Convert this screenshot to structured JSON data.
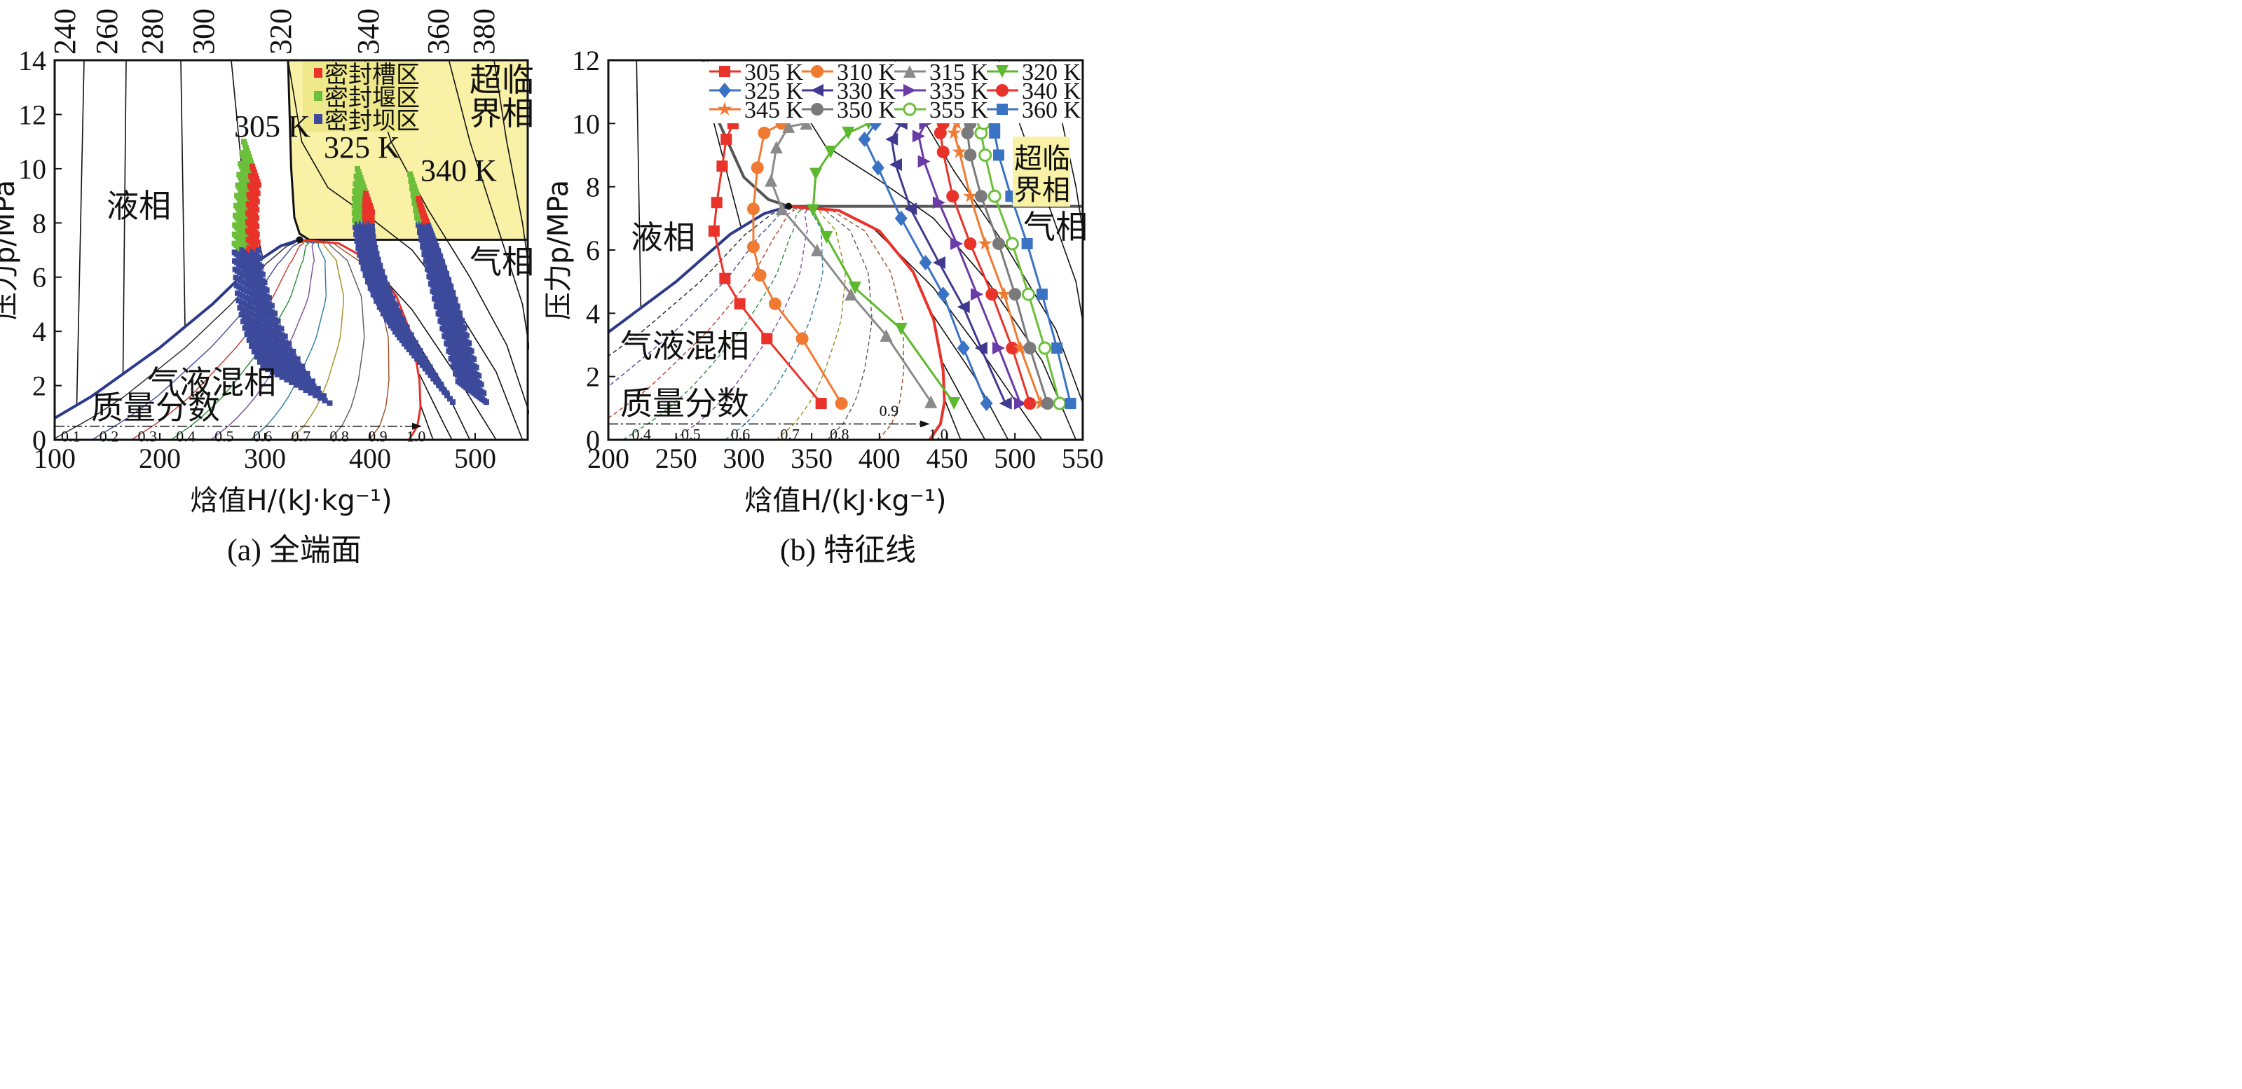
{
  "chart_data": [
    {
      "type": "scatter",
      "panel": "left",
      "caption": "(a) 全端面",
      "xlabel": "焓值H/(kJ·kg⁻¹)",
      "ylabel": "压力p/MPa",
      "xlim": [
        100,
        550
      ],
      "ylim": [
        0,
        14
      ],
      "xticks": [
        100,
        200,
        300,
        400,
        500
      ],
      "yticks": [
        0,
        2,
        4,
        6,
        8,
        10,
        12,
        14
      ],
      "isotherm_labels": [
        "240 K",
        "260 K",
        "280 K",
        "300 K",
        "320 K",
        "340 K",
        "360 K",
        "380 K"
      ],
      "region_labels": {
        "liquid": "液相",
        "vapor": "气相",
        "two_phase": "气液混相",
        "supercritical": "超临界相",
        "supercritical_l1": "超临",
        "supercritical_l2": "界相",
        "quality": "质量分数"
      },
      "quality_ticks": [
        "0.1",
        "0.2",
        "0.3",
        "0.4",
        "0.5",
        "0.6",
        "0.7",
        "0.8",
        "0.9",
        "1.0"
      ],
      "legend": [
        {
          "label": "密封槽区",
          "color": "#e8322a"
        },
        {
          "label": "密封堰区",
          "color": "#6cbf3a"
        },
        {
          "label": "密封坝区",
          "color": "#3d4a9c"
        }
      ],
      "group_labels": [
        "305 K",
        "325 K",
        "340 K"
      ],
      "groups": [
        {
          "name": "305 K",
          "top": [
            287,
            11
          ],
          "mid": [
            255,
            5
          ],
          "bottom_from": [
            300,
            2.6
          ],
          "bottom_to": [
            365,
            1.2
          ],
          "seal_split_p": 7
        },
        {
          "name": "325 K",
          "top": [
            395,
            10
          ],
          "mid": [
            372,
            6
          ],
          "bottom_from": [
            445,
            3
          ],
          "bottom_to": [
            482,
            1.2
          ],
          "seal_split_p": 8
        },
        {
          "name": "340 K",
          "top": [
            445,
            9.8
          ],
          "mid": [
            452,
            6
          ],
          "bottom_from": [
            485,
            2
          ],
          "bottom_to": [
            512,
            1.2
          ],
          "seal_split_p": 8
        }
      ]
    },
    {
      "type": "line",
      "panel": "right",
      "caption": "(b) 特征线",
      "xlabel": "焓值H/(kJ·kg⁻¹)",
      "ylabel": "压力p/MPa",
      "xlim": [
        200,
        550
      ],
      "ylim": [
        0,
        12
      ],
      "xticks": [
        200,
        250,
        300,
        350,
        400,
        450,
        500,
        550
      ],
      "yticks": [
        0,
        2,
        4,
        6,
        8,
        10,
        12
      ],
      "region_labels": {
        "liquid": "液相",
        "vapor": "气相",
        "two_phase": "气液混相",
        "supercritical_l1": "超临",
        "supercritical_l2": "界相",
        "quality": "质量分数"
      },
      "quality_ticks": [
        "0.4",
        "0.5",
        "0.6",
        "0.7",
        "0.8",
        "0.9",
        "1.0"
      ],
      "series": [
        {
          "name": "305 K",
          "color": "#e8322a",
          "marker": "square",
          "points": [
            [
              357,
              1.15
            ],
            [
              317,
              3.2
            ],
            [
              297,
              4.3
            ],
            [
              286,
              5.1
            ],
            [
              278,
              6.6
            ],
            [
              280,
              7.5
            ],
            [
              284,
              8.65
            ],
            [
              287,
              9.5
            ],
            [
              292,
              10
            ]
          ]
        },
        {
          "name": "310 K",
          "color": "#f07a32",
          "marker": "circle",
          "points": [
            [
              372,
              1.15
            ],
            [
              343,
              3.2
            ],
            [
              323,
              4.3
            ],
            [
              312,
              5.2
            ],
            [
              307,
              6.1
            ],
            [
              307,
              7.3
            ],
            [
              310,
              8.6
            ],
            [
              315,
              9.7
            ],
            [
              328,
              10
            ]
          ]
        },
        {
          "name": "315 K",
          "color": "#8a8a8a",
          "marker": "triangle-up",
          "points": [
            [
              438,
              1.2
            ],
            [
              405,
              3.3
            ],
            [
              379,
              4.6
            ],
            [
              354,
              6.0
            ],
            [
              328,
              7.3
            ],
            [
              320,
              8.2
            ],
            [
              324,
              9.25
            ],
            [
              333,
              9.9
            ],
            [
              346,
              10
            ]
          ]
        },
        {
          "name": "320 K",
          "color": "#5cb82e",
          "marker": "triangle-down",
          "points": [
            [
              455,
              1.15
            ],
            [
              416,
              3.5
            ],
            [
              382,
              4.8
            ],
            [
              361,
              6.4
            ],
            [
              351,
              7.25
            ],
            [
              353,
              8.4
            ],
            [
              364,
              9.1
            ],
            [
              377,
              9.7
            ],
            [
              392,
              10
            ]
          ]
        },
        {
          "name": "325 K",
          "color": "#3a72c4",
          "marker": "diamond",
          "points": [
            [
              479,
              1.15
            ],
            [
              462,
              2.9
            ],
            [
              447,
              4.6
            ],
            [
              434,
              5.6
            ],
            [
              416,
              7.0
            ],
            [
              399,
              8.6
            ],
            [
              389,
              9.5
            ],
            [
              397,
              10
            ]
          ]
        },
        {
          "name": "330 K",
          "color": "#3f3a8f",
          "marker": "triangle-left",
          "points": [
            [
              493,
              1.15
            ],
            [
              475,
              2.9
            ],
            [
              462,
              4.2
            ],
            [
              444,
              5.6
            ],
            [
              423,
              7.3
            ],
            [
              412,
              8.7
            ],
            [
              409,
              9.5
            ],
            [
              416,
              10
            ]
          ]
        },
        {
          "name": "335 K",
          "color": "#6a3aa6",
          "marker": "triangle-right",
          "points": [
            [
              504,
              1.15
            ],
            [
              488,
              2.9
            ],
            [
              472,
              4.6
            ],
            [
              457,
              6.2
            ],
            [
              444,
              7.5
            ],
            [
              433,
              8.8
            ],
            [
              429,
              9.6
            ],
            [
              434,
              10
            ]
          ]
        },
        {
          "name": "340 K",
          "color": "#e8322a",
          "marker": "hexagon",
          "points": [
            [
              511,
              1.15
            ],
            [
              498,
              2.9
            ],
            [
              483,
              4.6
            ],
            [
              467,
              6.2
            ],
            [
              454,
              7.7
            ],
            [
              447,
              9.1
            ],
            [
              445,
              9.7
            ],
            [
              447,
              10
            ]
          ]
        },
        {
          "name": "345 K",
          "color": "#f07a32",
          "marker": "star",
          "points": [
            [
              519,
              1.15
            ],
            [
              504,
              2.9
            ],
            [
              492,
              4.6
            ],
            [
              478,
              6.2
            ],
            [
              467,
              7.7
            ],
            [
              459,
              9.1
            ],
            [
              455,
              9.7
            ],
            [
              457,
              10
            ]
          ]
        },
        {
          "name": "350 K",
          "color": "#7a7a7a",
          "marker": "pentagon",
          "points": [
            [
              524,
              1.15
            ],
            [
              511,
              2.9
            ],
            [
              500,
              4.6
            ],
            [
              488,
              6.2
            ],
            [
              475,
              7.7
            ],
            [
              467,
              9.0
            ],
            [
              465,
              9.7
            ],
            [
              467,
              10
            ]
          ]
        },
        {
          "name": "355 K",
          "color": "#6cbf3a",
          "marker": "open-circle",
          "points": [
            [
              533,
              1.15
            ],
            [
              522,
              2.9
            ],
            [
              510,
              4.6
            ],
            [
              498,
              6.2
            ],
            [
              485,
              7.7
            ],
            [
              478,
              9.0
            ],
            [
              475,
              9.7
            ],
            [
              477,
              10
            ]
          ]
        },
        {
          "name": "360 K",
          "color": "#3a72c4",
          "marker": "square",
          "points": [
            [
              541,
              1.15
            ],
            [
              531,
              2.9
            ],
            [
              520,
              4.6
            ],
            [
              509,
              6.2
            ],
            [
              497,
              7.7
            ],
            [
              488,
              9.0
            ],
            [
              485,
              9.7
            ],
            [
              485,
              10
            ]
          ]
        }
      ]
    }
  ],
  "critical_point": [
    333,
    7.38
  ]
}
